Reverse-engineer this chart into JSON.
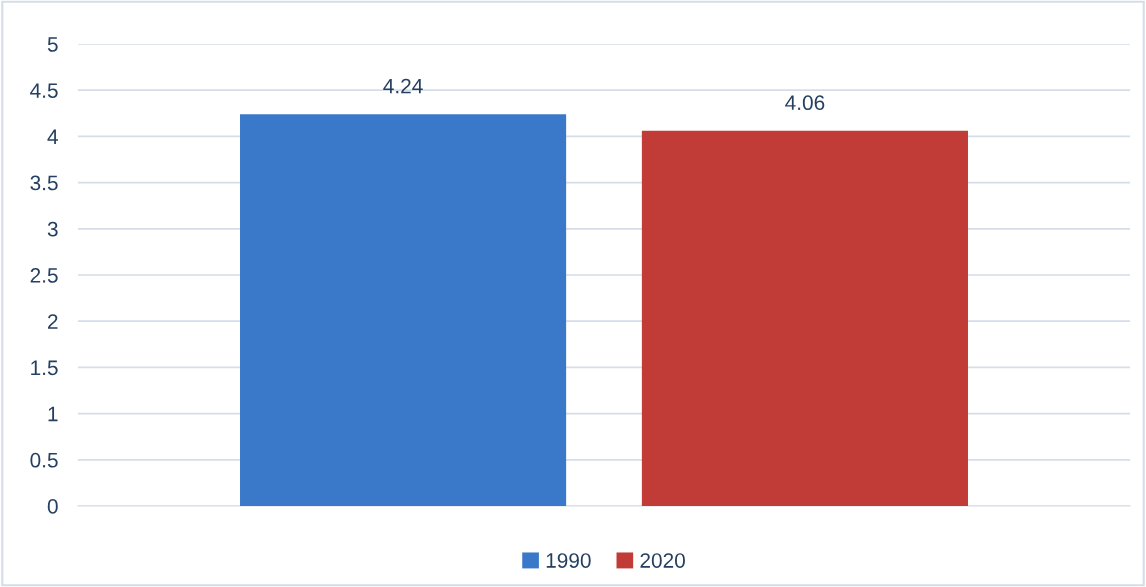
{
  "chart_data": {
    "type": "bar",
    "categories": [
      null
    ],
    "series": [
      {
        "name": "1990",
        "color": "#3a78c9",
        "values": [
          4.24
        ]
      },
      {
        "name": "2020",
        "color": "#c23c37",
        "values": [
          4.06
        ]
      }
    ],
    "ylim": [
      0,
      5
    ],
    "yticks": [
      0,
      {
        "value": 0.5,
        "label": "0.5"
      },
      1,
      {
        "value": 1.5,
        "label": "1.5"
      },
      2,
      {
        "value": 2.5,
        "label": "2.5"
      },
      3,
      {
        "value": 3.5,
        "label": "3.5"
      },
      4,
      {
        "value": 4.5,
        "label": "4.5"
      },
      5
    ],
    "grid": "y",
    "legend": "bottom",
    "data_labels": true
  }
}
